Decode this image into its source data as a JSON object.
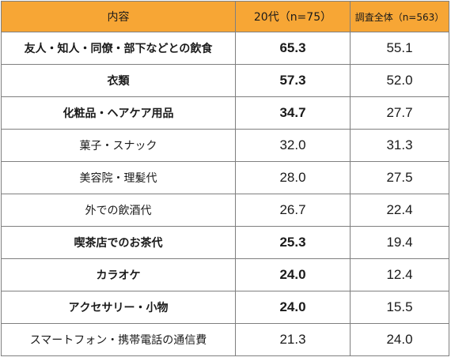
{
  "table": {
    "headers": [
      "内容",
      "20代（n=75）",
      "調査全体（n=563）"
    ],
    "rows": [
      {
        "label": "友人・知人・同僚・部下などとの飲食",
        "age20s": "65.3",
        "overall": "55.1",
        "emphasis": true
      },
      {
        "label": "衣類",
        "age20s": "57.3",
        "overall": "52.0",
        "emphasis": true
      },
      {
        "label": "化粧品・ヘアケア用品",
        "age20s": "34.7",
        "overall": "27.7",
        "emphasis": true
      },
      {
        "label": "菓子・スナック",
        "age20s": "32.0",
        "overall": "31.3",
        "emphasis": false
      },
      {
        "label": "美容院・理髪代",
        "age20s": "28.0",
        "overall": "27.5",
        "emphasis": false
      },
      {
        "label": "外での飲酒代",
        "age20s": "26.7",
        "overall": "22.4",
        "emphasis": false
      },
      {
        "label": "喫茶店でのお茶代",
        "age20s": "25.3",
        "overall": "19.4",
        "emphasis": true
      },
      {
        "label": "カラオケ",
        "age20s": "24.0",
        "overall": "12.4",
        "emphasis": true
      },
      {
        "label": "アクセサリー・小物",
        "age20s": "24.0",
        "overall": "15.5",
        "emphasis": true
      },
      {
        "label": "スマートフォン・携帯電話の通信費",
        "age20s": "21.3",
        "overall": "24.0",
        "emphasis": false
      }
    ],
    "colors": {
      "header_bg": "#f7a635",
      "border": "#7f7f7f"
    }
  }
}
